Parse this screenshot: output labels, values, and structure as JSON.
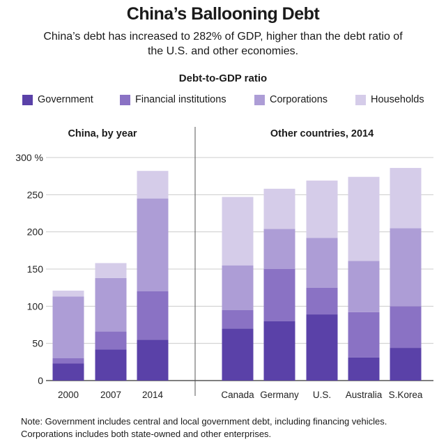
{
  "title": "China’s Ballooning Debt",
  "subtitle": "China’s debt has increased to 282% of GDP, higher than the debt ratio of the U.S. and other economies.",
  "metric_label": "Debt-to-GDP ratio",
  "note_lines": [
    "Note: Government includes central and local government debt, including financing vehicles.",
    "Corporations includes both state-owned and other enterprises."
  ],
  "colors": {
    "government": "#5a41a8",
    "financial": "#8a72c4",
    "corporations": "#ad9dd6",
    "households": "#d5cce9",
    "axis": "#333333",
    "grid": "#cccccc",
    "divider": "#555555"
  },
  "legend": [
    {
      "label": "Government"
    },
    {
      "label": "Financial institutions"
    },
    {
      "label": "Corporations"
    },
    {
      "label": "Households"
    }
  ],
  "chart_data": {
    "type": "bar",
    "stacked": true,
    "ylim": [
      0,
      300
    ],
    "yticks": [
      0,
      50,
      100,
      150,
      200,
      250,
      300
    ],
    "ytick_labels": [
      "0",
      "50",
      "100",
      "150",
      "200",
      "250",
      "300 %"
    ],
    "grid": true,
    "legend_position": "top",
    "panels": [
      {
        "title": "China, by year",
        "categories": [
          "2000",
          "2007",
          "2014"
        ],
        "series": [
          {
            "name": "Government",
            "values": [
              23,
              42,
              55
            ]
          },
          {
            "name": "Financial institutions",
            "values": [
              7,
              24,
              65
            ]
          },
          {
            "name": "Corporations",
            "values": [
              83,
              72,
              125
            ]
          },
          {
            "name": "Households",
            "values": [
              8,
              20,
              37
            ]
          }
        ]
      },
      {
        "title": "Other countries, 2014",
        "categories": [
          "Canada",
          "Germany",
          "U.S.",
          "Australia",
          "S.Korea"
        ],
        "series": [
          {
            "name": "Government",
            "values": [
              70,
              80,
              89,
              31,
              44
            ]
          },
          {
            "name": "Financial institutions",
            "values": [
              25,
              70,
              36,
              61,
              56
            ]
          },
          {
            "name": "Corporations",
            "values": [
              60,
              54,
              67,
              69,
              105
            ]
          },
          {
            "name": "Households",
            "values": [
              92,
              54,
              77,
              113,
              81
            ]
          }
        ]
      }
    ]
  }
}
